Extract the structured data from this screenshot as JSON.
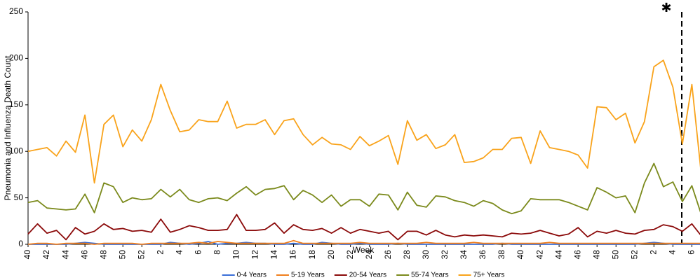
{
  "chart_data": {
    "type": "line",
    "x_label": "Week",
    "y_label": "Pneumonia and Influenza Death Count",
    "annotation": "✱",
    "categories": [
      "40",
      null,
      "42",
      null,
      "44",
      null,
      "46",
      null,
      "48",
      null,
      "50",
      null,
      "52",
      null,
      "2",
      null,
      "4",
      null,
      "6",
      null,
      "8",
      null,
      "10",
      null,
      "12",
      null,
      "14",
      null,
      "16",
      null,
      "18",
      null,
      "20",
      null,
      "22",
      null,
      "24",
      null,
      "26",
      null,
      "28",
      null,
      "30",
      null,
      "32",
      null,
      "34",
      null,
      "36",
      null,
      "38",
      null,
      "40",
      null,
      "42",
      null,
      "44",
      null,
      "46",
      null,
      "48",
      null,
      "50",
      null,
      "52",
      null,
      "2",
      null,
      "4",
      null,
      "6",
      null
    ],
    "ylim": [
      0,
      250
    ],
    "yticks": [
      0,
      50,
      100,
      150,
      200,
      250
    ],
    "series": [
      {
        "name": "0-4 Years",
        "color": "#3a6fd8",
        "values": [
          0,
          0,
          0,
          0,
          0,
          1,
          2,
          1,
          0,
          0,
          0,
          0,
          0,
          0,
          0,
          2,
          1,
          0,
          1,
          3,
          0,
          1,
          1,
          2,
          1,
          1,
          0,
          0,
          1,
          0,
          0,
          2,
          1,
          0,
          0,
          1,
          0,
          0,
          0,
          1,
          0,
          0,
          0,
          0,
          0,
          0,
          0,
          0,
          0,
          0,
          1,
          0,
          0,
          0,
          0,
          0,
          0,
          0,
          0,
          0,
          0,
          0,
          0,
          0,
          0,
          1,
          2,
          1,
          0,
          0,
          0,
          0
        ]
      },
      {
        "name": "5-19 Years",
        "color": "#f07f1d",
        "values": [
          0,
          1,
          1,
          0,
          1,
          1,
          1,
          0,
          1,
          1,
          1,
          1,
          0,
          1,
          1,
          1,
          1,
          1,
          2,
          1,
          3,
          2,
          1,
          1,
          1,
          1,
          1,
          1,
          4,
          1,
          1,
          1,
          1,
          1,
          1,
          2,
          1,
          1,
          1,
          1,
          1,
          1,
          2,
          1,
          1,
          1,
          1,
          2,
          1,
          1,
          1,
          1,
          1,
          1,
          1,
          2,
          1,
          1,
          1,
          1,
          1,
          1,
          1,
          1,
          1,
          1,
          1,
          1,
          1,
          1,
          1,
          1
        ]
      },
      {
        "name": "20-54 Years",
        "color": "#8b0a0a",
        "values": [
          11,
          22,
          12,
          15,
          5,
          18,
          11,
          14,
          22,
          16,
          17,
          14,
          15,
          13,
          27,
          13,
          16,
          20,
          18,
          15,
          15,
          16,
          32,
          15,
          15,
          16,
          23,
          12,
          21,
          16,
          15,
          17,
          12,
          18,
          12,
          16,
          14,
          12,
          14,
          5,
          14,
          14,
          10,
          15,
          10,
          8,
          10,
          9,
          10,
          9,
          8,
          12,
          11,
          12,
          15,
          12,
          9,
          11,
          18,
          8,
          14,
          12,
          15,
          12,
          11,
          15,
          16,
          21,
          19,
          14,
          22,
          9
        ]
      },
      {
        "name": "55-74 Years",
        "color": "#7b8a1c",
        "values": [
          45,
          47,
          39,
          38,
          37,
          38,
          54,
          34,
          66,
          62,
          45,
          50,
          48,
          49,
          59,
          51,
          59,
          48,
          45,
          49,
          50,
          47,
          55,
          62,
          53,
          59,
          60,
          63,
          48,
          58,
          53,
          45,
          53,
          41,
          48,
          48,
          41,
          54,
          53,
          37,
          56,
          42,
          40,
          52,
          51,
          47,
          45,
          41,
          47,
          44,
          37,
          33,
          36,
          49,
          48,
          48,
          48,
          45,
          41,
          37,
          61,
          56,
          50,
          52,
          34,
          66,
          87,
          62,
          67,
          46,
          63,
          32
        ]
      },
      {
        "name": "75+ Years",
        "color": "#f9a31b",
        "values": [
          100,
          102,
          104,
          95,
          111,
          99,
          139,
          66,
          129,
          139,
          105,
          123,
          111,
          134,
          172,
          144,
          121,
          123,
          134,
          132,
          132,
          154,
          125,
          129,
          129,
          134,
          118,
          133,
          135,
          118,
          107,
          115,
          108,
          107,
          102,
          116,
          106,
          111,
          117,
          86,
          133,
          112,
          118,
          103,
          107,
          118,
          88,
          89,
          93,
          102,
          102,
          114,
          115,
          87,
          122,
          104,
          102,
          100,
          96,
          82,
          148,
          147,
          134,
          141,
          109,
          132,
          191,
          198,
          169,
          108,
          172,
          75
        ]
      }
    ]
  }
}
